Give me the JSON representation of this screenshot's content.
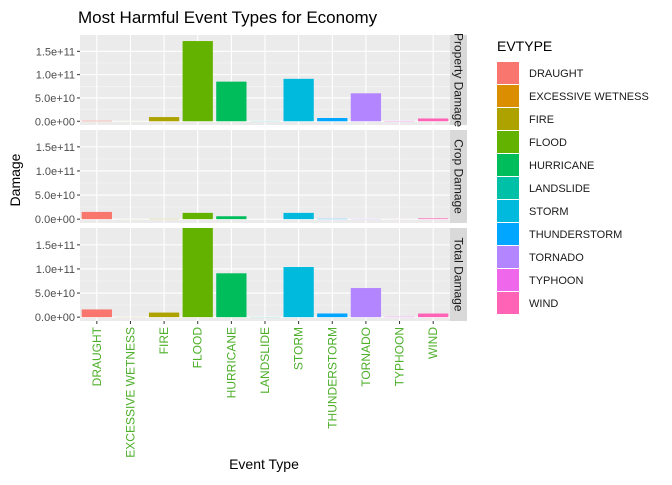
{
  "chart_data": {
    "type": "bar",
    "title": "Most Harmful Event Types for Economy",
    "xlabel": "Event Type",
    "ylabel": "Damage",
    "categories": [
      "DRAUGHT",
      "EXCESSIVE WETNESS",
      "FIRE",
      "FLOOD",
      "HURRICANE",
      "LANDSLIDE",
      "STORM",
      "THUNDERSTORM",
      "TORNADO",
      "TYPHOON",
      "WIND"
    ],
    "colors": [
      "#F8766D",
      "#DB8E00",
      "#AEA200",
      "#64B200",
      "#00BD5C",
      "#00C1A7",
      "#00BADE",
      "#00A6FF",
      "#B385FF",
      "#EF67EB",
      "#FF63B6"
    ],
    "ylim": [
      -8000000000,
      185000000000
    ],
    "y_ticks": [
      0,
      50000000000,
      100000000000,
      150000000000
    ],
    "y_tick_labels": [
      "0.0e+00",
      "5.0e+10",
      "1.0e+11",
      "1.5e+11"
    ],
    "legend": {
      "title": "EVTYPE",
      "position": "right"
    },
    "facets": [
      {
        "label": "Property Damage",
        "values": [
          1000000000,
          100000000,
          9000000000,
          172000000000,
          85000000000,
          300000000,
          91000000000,
          7000000000,
          60000000000,
          600000000,
          6000000000
        ]
      },
      {
        "label": "Crop Damage",
        "values": [
          15000000000,
          100000000,
          500000000,
          13000000000,
          6000000000,
          20000000,
          13000000000,
          600000000,
          400000000,
          100000000,
          1500000000
        ]
      },
      {
        "label": "Total Damage",
        "values": [
          16000000000,
          200000000,
          9500000000,
          185000000000,
          91000000000,
          320000000,
          104000000000,
          7600000000,
          60400000000,
          700000000,
          7500000000
        ]
      }
    ],
    "x_tick_label_color": "#4DAF2A",
    "grid": true,
    "panel_background": "#EBEBEB",
    "strip_background": "#D9D9D9"
  }
}
